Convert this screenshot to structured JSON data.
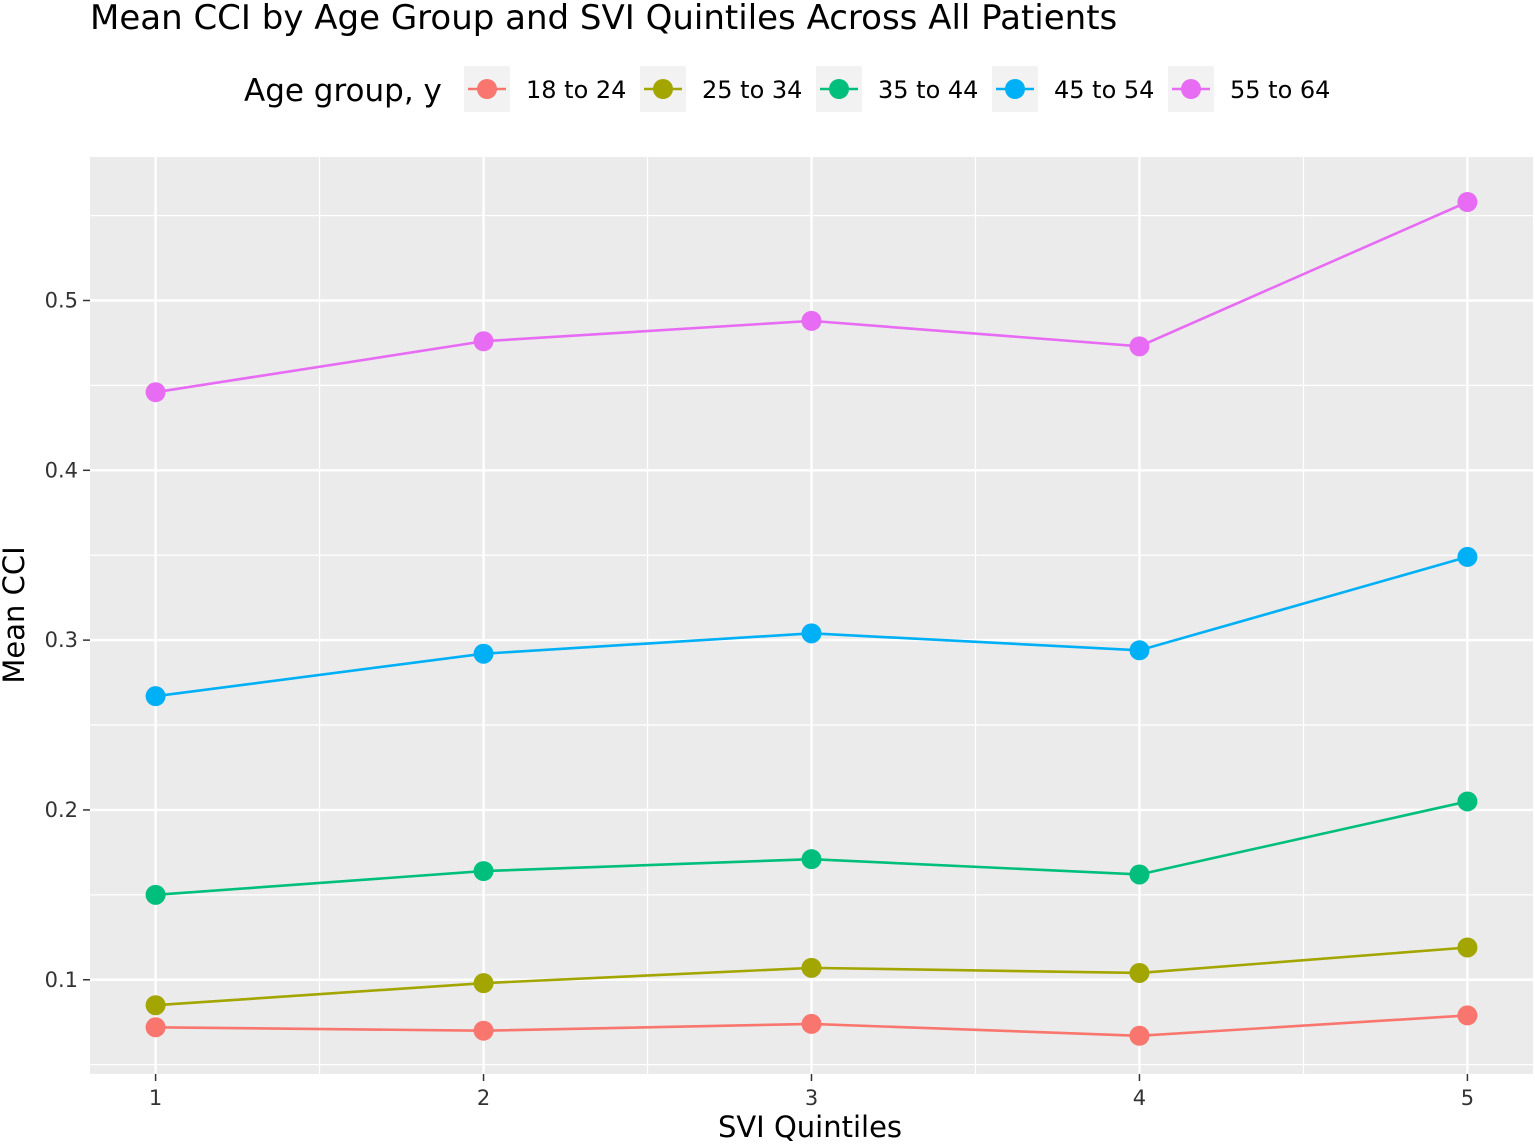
{
  "chart_data": {
    "type": "line",
    "title": "Mean CCI by Age Group and SVI Quintiles Across All Patients",
    "xlabel": "SVI Quintiles",
    "ylabel": "Mean CCI",
    "legend_title": "Age group, y",
    "legend_position": "top",
    "grid": true,
    "x": [
      1,
      2,
      3,
      4,
      5
    ],
    "x_ticks": [
      "1",
      "2",
      "3",
      "4",
      "5"
    ],
    "xlim": [
      0.8,
      5.2
    ],
    "y_ticks": [
      0.1,
      0.2,
      0.3,
      0.4,
      0.5
    ],
    "y_tick_labels": [
      "0.1",
      "0.2",
      "0.3",
      "0.4",
      "0.5"
    ],
    "ylim": [
      0.0445,
      0.5845
    ],
    "series": [
      {
        "name": "18 to 24",
        "color": "#F8766D",
        "values": [
          0.072,
          0.07,
          0.074,
          0.067,
          0.079
        ]
      },
      {
        "name": "25 to 34",
        "color": "#A3A500",
        "values": [
          0.085,
          0.098,
          0.107,
          0.104,
          0.119
        ]
      },
      {
        "name": "35 to 44",
        "color": "#00BF7D",
        "values": [
          0.15,
          0.164,
          0.171,
          0.162,
          0.205
        ]
      },
      {
        "name": "45 to 54",
        "color": "#00B0F6",
        "values": [
          0.267,
          0.292,
          0.304,
          0.294,
          0.349
        ]
      },
      {
        "name": "55 to 64",
        "color": "#E76BF3",
        "values": [
          0.446,
          0.476,
          0.488,
          0.473,
          0.558
        ]
      }
    ]
  }
}
